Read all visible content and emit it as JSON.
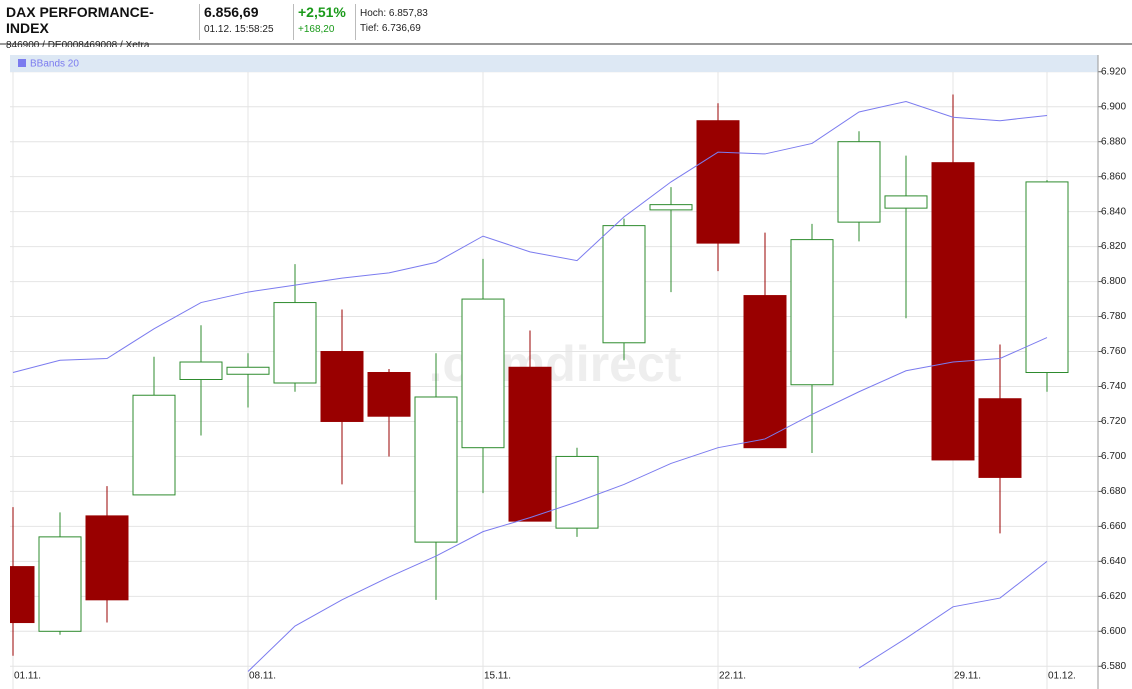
{
  "header": {
    "name": "DAX PERFORMANCE-INDEX",
    "id": "846900 / DE0008469008 / Xetra",
    "price": "6.856,69",
    "time": "01.12. 15:58:25",
    "change_pct": "+2,51%",
    "change_abs": "+168,20",
    "high": "Hoch: 6.857,83",
    "low": "Tief: 6.736,69"
  },
  "chart_data": {
    "type": "candlestick",
    "watermark": ".comdirect",
    "categories": [
      "01.11.",
      null,
      null,
      null,
      null,
      "08.11.",
      null,
      null,
      null,
      null,
      "15.11.",
      null,
      null,
      null,
      null,
      "22.11.",
      null,
      null,
      null,
      null,
      "29.11.",
      null,
      "01.12."
    ],
    "series": [
      {
        "type": "candlestick",
        "up_color": "#2e8b2e",
        "down_color": "#990000",
        "open": [
          6637,
          6600,
          6666,
          6678,
          6744,
          6747,
          6742,
          6760,
          6748,
          6651,
          6705,
          6751,
          6659,
          6765,
          6841,
          6892,
          6792,
          6741,
          6834,
          6842,
          6868,
          6733,
          6748
        ],
        "high": [
          6671,
          6668,
          6683,
          6757,
          6775,
          6759,
          6810,
          6784,
          6750,
          6759,
          6813,
          6772,
          6705,
          6836,
          6854,
          6902,
          6828,
          6833,
          6886,
          6872,
          6907,
          6764,
          6858
        ],
        "low": [
          6586,
          6598,
          6605,
          6678,
          6712,
          6728,
          6737,
          6684,
          6700,
          6618,
          6679,
          6663,
          6654,
          6755,
          6794,
          6806,
          6705,
          6702,
          6823,
          6779,
          6698,
          6656,
          6737
        ],
        "close": [
          6605,
          6654,
          6618,
          6735,
          6754,
          6751,
          6788,
          6720,
          6723,
          6734,
          6790,
          6663,
          6700,
          6832,
          6844,
          6822,
          6705,
          6824,
          6880,
          6849,
          6698,
          6688,
          6857
        ]
      },
      {
        "type": "line",
        "name": "BBands 20",
        "color": "#7b7bef",
        "upper": [
          6748,
          6755,
          6756,
          6773,
          6788,
          6794,
          6798,
          6802,
          6805,
          6811,
          6826,
          6817,
          6812,
          6837,
          6857,
          6874,
          6873,
          6879,
          6897,
          6903,
          6894,
          6892,
          6895
        ],
        "middle": [
          null,
          null,
          null,
          null,
          null,
          6577,
          6603,
          6618,
          6631,
          6643,
          6657,
          6665,
          6674,
          6684,
          6696,
          6705,
          6710,
          6724,
          6737,
          6749,
          6754,
          6756,
          6768
        ],
        "lower": [
          null,
          null,
          null,
          null,
          null,
          null,
          null,
          null,
          null,
          null,
          null,
          null,
          null,
          null,
          null,
          null,
          null,
          null,
          6579,
          6596,
          6614,
          6619,
          6640
        ]
      }
    ],
    "ylim": [
      6567,
      6921
    ],
    "yticks": [
      {
        "value": 6580,
        "label": "6.580"
      },
      {
        "value": 6600,
        "label": "6.600"
      },
      {
        "value": 6620,
        "label": "6.620"
      },
      {
        "value": 6640,
        "label": "6.640"
      },
      {
        "value": 6660,
        "label": "6.660"
      },
      {
        "value": 6680,
        "label": "6.680"
      },
      {
        "value": 6700,
        "label": "6.700"
      },
      {
        "value": 6720,
        "label": "6.720"
      },
      {
        "value": 6740,
        "label": "6.740"
      },
      {
        "value": 6760,
        "label": "6.760"
      },
      {
        "value": 6780,
        "label": "6.780"
      },
      {
        "value": 6800,
        "label": "6.800"
      },
      {
        "value": 6820,
        "label": "6.820"
      },
      {
        "value": 6840,
        "label": "6.840"
      },
      {
        "value": 6860,
        "label": "6.860"
      },
      {
        "value": 6880,
        "label": "6.880"
      },
      {
        "value": 6900,
        "label": "6.900"
      },
      {
        "value": 6920,
        "label": "6.920"
      }
    ],
    "grid": true
  }
}
